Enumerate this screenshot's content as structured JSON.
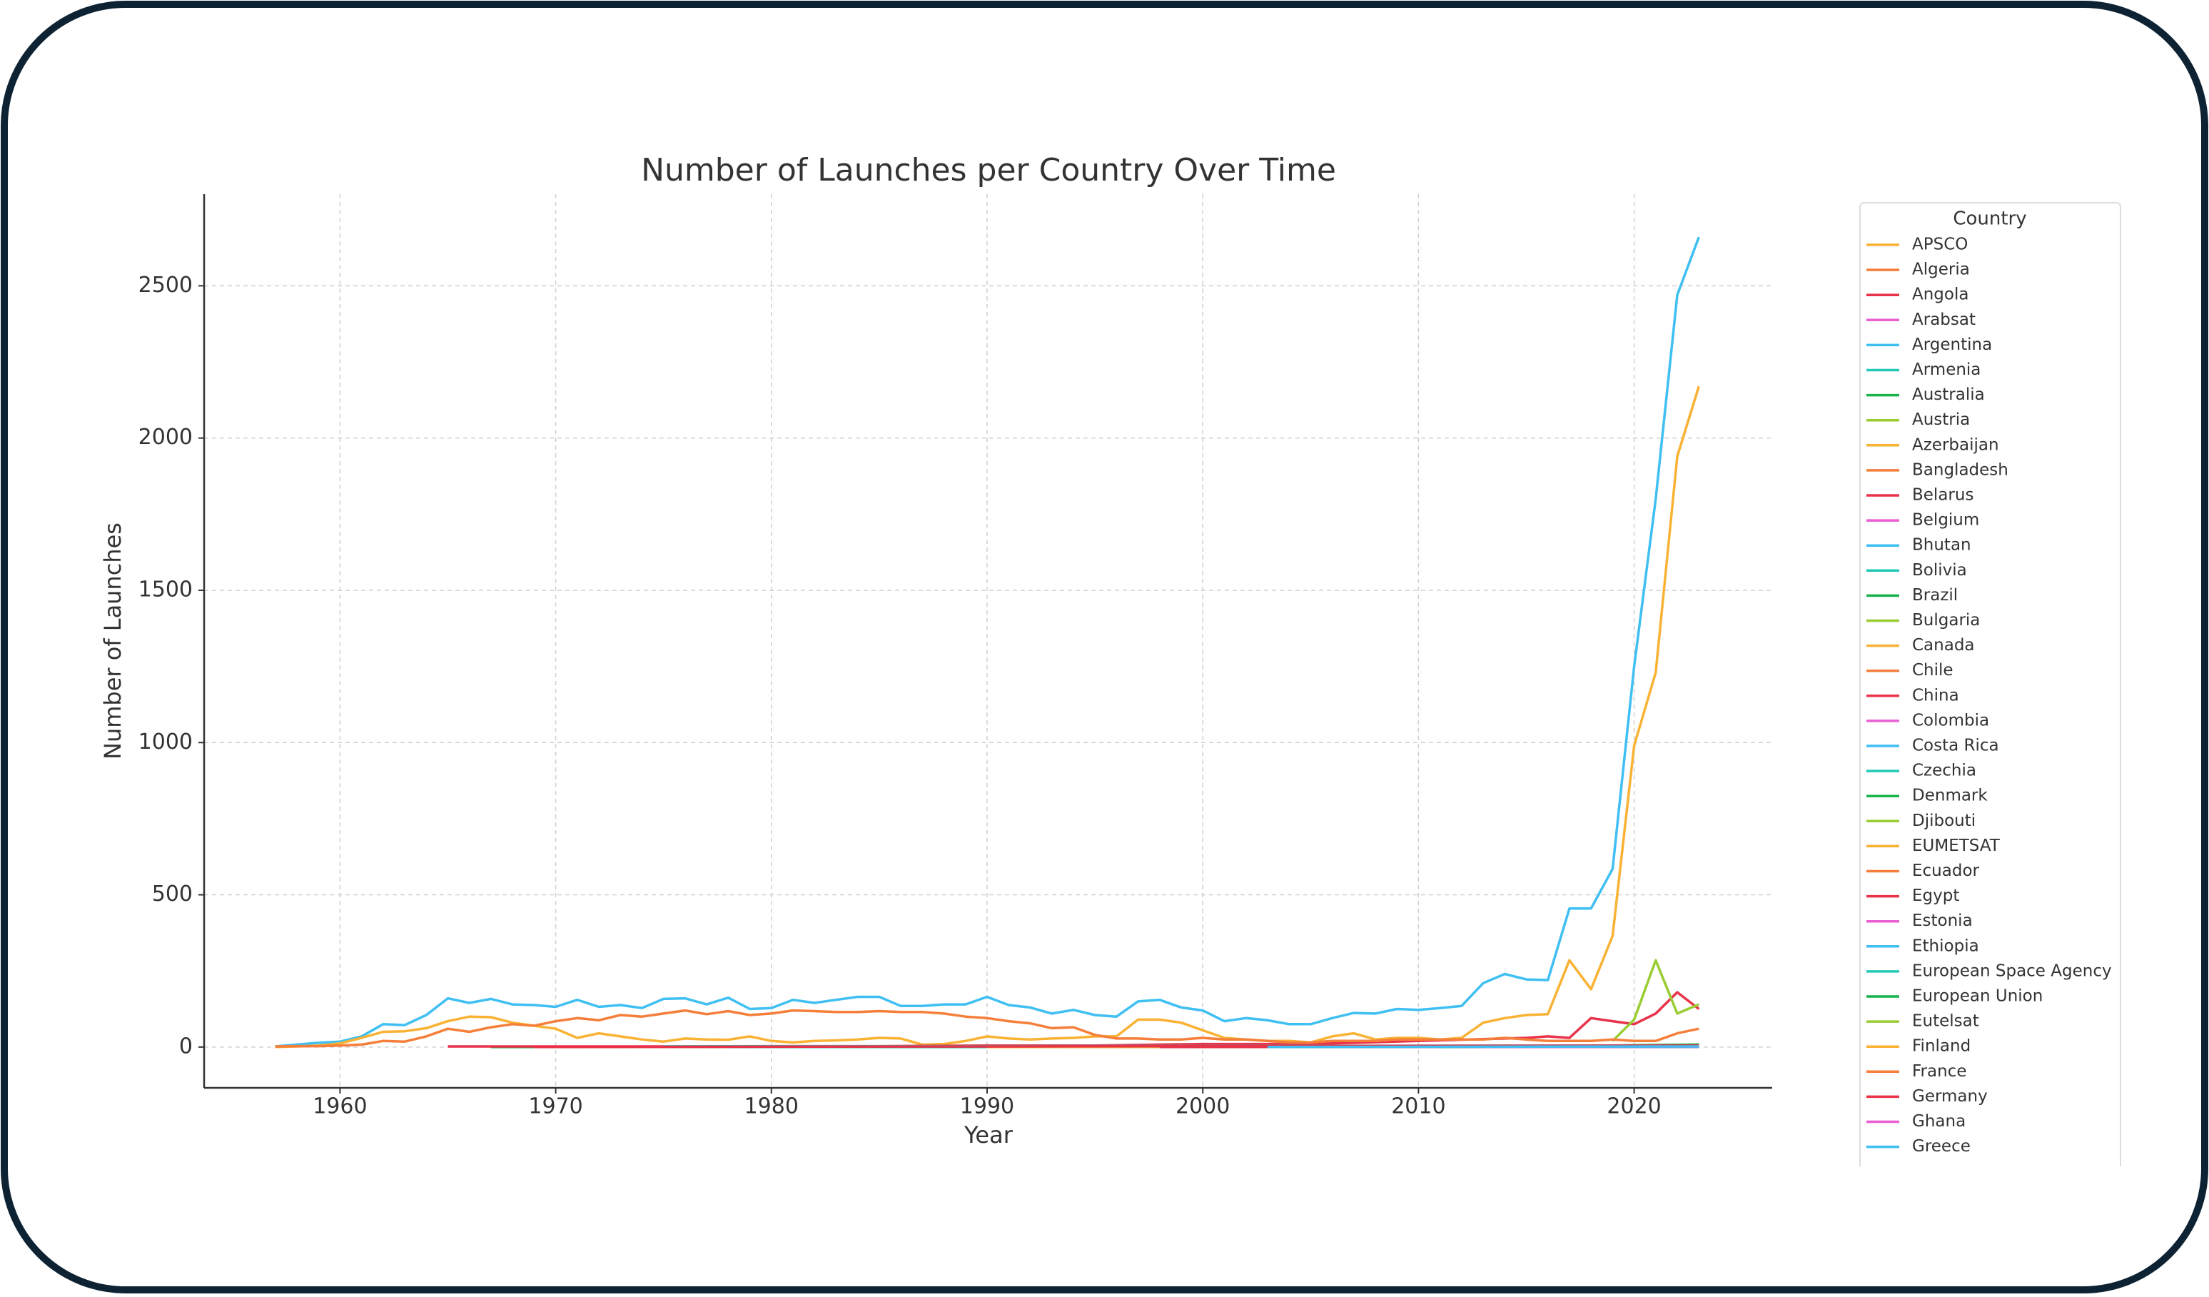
{
  "chart_data": {
    "type": "line",
    "title": "Number of Launches per Country Over Time",
    "x_label": "Year",
    "y_label": "Number of Launches",
    "legend_title": "Country",
    "legend": "right-outside",
    "grid": true,
    "xlim": [
      1953.7,
      2026.4
    ],
    "xticks": [
      1960,
      1970,
      1980,
      1990,
      2000,
      2010,
      2020
    ],
    "ylim": [
      -134,
      2801
    ],
    "yticks": [
      0,
      500,
      1000,
      1500,
      2000,
      2500
    ],
    "series": [
      {
        "name": "APSCO",
        "color": "#f9b234",
        "x": [
          2008,
          2023
        ],
        "values": [
          0,
          1
        ]
      },
      {
        "name": "Algeria",
        "color": "#f57f3a",
        "x": [
          2002,
          2023
        ],
        "values": [
          0,
          1
        ]
      },
      {
        "name": "Angola",
        "color": "#e8334a",
        "x": [
          2017,
          2023
        ],
        "values": [
          0,
          1
        ]
      },
      {
        "name": "Arabsat",
        "color": "#ea5fd2",
        "x": [
          1985,
          2023
        ],
        "values": [
          0,
          2
        ]
      },
      {
        "name": "Argentina",
        "color": "#3fbff2",
        "x": [
          1957,
          1958,
          1959,
          1960,
          1961,
          1962,
          1963,
          1964,
          1965,
          1966,
          1967,
          1968,
          1969,
          1970,
          1971,
          1972,
          1973,
          1974,
          1975,
          1976,
          1977,
          1978,
          1979,
          1980,
          1981,
          1982,
          1983,
          1984,
          1985,
          1986,
          1987,
          1988,
          1989,
          1990,
          1991,
          1992,
          1993,
          1994,
          1995,
          1996,
          1997,
          1998,
          1999,
          2000,
          2001,
          2002,
          2003,
          2004,
          2005,
          2006,
          2007,
          2008,
          2009,
          2010,
          2011,
          2012,
          2013,
          2014,
          2015,
          2016,
          2017,
          2018,
          2019,
          2020,
          2021,
          2022,
          2023
        ],
        "values": [
          2,
          8,
          14,
          18,
          35,
          75,
          72,
          105,
          160,
          145,
          158,
          140,
          138,
          132,
          155,
          132,
          138,
          128,
          158,
          160,
          140,
          162,
          125,
          128,
          155,
          145,
          155,
          165,
          165,
          135,
          135,
          140,
          140,
          165,
          138,
          130,
          110,
          122,
          105,
          100,
          150,
          155,
          130,
          120,
          85,
          95,
          88,
          75,
          75,
          95,
          112,
          110,
          125,
          122,
          128,
          135,
          210,
          240,
          222,
          220,
          455,
          455,
          585,
          1250,
          1800,
          2470,
          2660
        ]
      },
      {
        "name": "Armenia",
        "color": "#23c9b6",
        "x": [
          2010,
          2023
        ],
        "values": [
          0,
          1
        ]
      },
      {
        "name": "Australia",
        "color": "#18b24b",
        "x": [
          1967,
          2023
        ],
        "values": [
          0,
          3
        ]
      },
      {
        "name": "Austria",
        "color": "#9acd32",
        "x": [
          1969,
          2023
        ],
        "values": [
          0,
          2
        ]
      },
      {
        "name": "Azerbaijan",
        "color": "#f9b234",
        "x": [
          2013,
          2023
        ],
        "values": [
          0,
          1
        ]
      },
      {
        "name": "Bangladesh",
        "color": "#f57f3a",
        "x": [
          2018,
          2023
        ],
        "values": [
          0,
          1
        ]
      },
      {
        "name": "Belarus",
        "color": "#e8334a",
        "x": [
          2012,
          2023
        ],
        "values": [
          0,
          1
        ]
      },
      {
        "name": "Belgium",
        "color": "#ea5fd2",
        "x": [
          2001,
          2023
        ],
        "values": [
          0,
          2
        ]
      },
      {
        "name": "Bhutan",
        "color": "#3fbff2",
        "x": [
          2018,
          2023
        ],
        "values": [
          0,
          1
        ]
      },
      {
        "name": "Bolivia",
        "color": "#23c9b6",
        "x": [
          2013,
          2023
        ],
        "values": [
          0,
          1
        ]
      },
      {
        "name": "Brazil",
        "color": "#18b24b",
        "x": [
          1985,
          2023
        ],
        "values": [
          0,
          4
        ]
      },
      {
        "name": "Bulgaria",
        "color": "#9acd32",
        "x": [
          2014,
          2023
        ],
        "values": [
          0,
          1
        ]
      },
      {
        "name": "Canada",
        "color": "#f9b234",
        "x": [
          1957,
          1958,
          1959,
          1960,
          1961,
          1962,
          1963,
          1964,
          1965,
          1966,
          1967,
          1968,
          1969,
          1970,
          1971,
          1972,
          1973,
          1974,
          1975,
          1976,
          1977,
          1978,
          1979,
          1980,
          1981,
          1982,
          1983,
          1984,
          1985,
          1986,
          1987,
          1988,
          1989,
          1990,
          1991,
          1992,
          1993,
          1994,
          1995,
          1996,
          1997,
          1998,
          1999,
          2000,
          2001,
          2002,
          2003,
          2004,
          2005,
          2006,
          2007,
          2008,
          2009,
          2010,
          2011,
          2012,
          2013,
          2014,
          2015,
          2016,
          2017,
          2018,
          2019,
          2020,
          2021,
          2022,
          2023
        ],
        "values": [
          0,
          2,
          5,
          12,
          30,
          50,
          52,
          62,
          85,
          100,
          98,
          80,
          70,
          60,
          30,
          45,
          35,
          25,
          18,
          28,
          25,
          24,
          35,
          20,
          15,
          20,
          22,
          25,
          30,
          28,
          8,
          10,
          20,
          35,
          28,
          25,
          28,
          30,
          35,
          35,
          90,
          90,
          80,
          55,
          30,
          25,
          20,
          20,
          15,
          35,
          45,
          25,
          30,
          30,
          25,
          30,
          80,
          95,
          105,
          108,
          285,
          190,
          365,
          990,
          1230,
          1940,
          2170
        ]
      },
      {
        "name": "Chile",
        "color": "#f57f3a",
        "x": [
          1998,
          2023
        ],
        "values": [
          0,
          1
        ]
      },
      {
        "name": "China",
        "color": "#e8334a",
        "x": [
          1965,
          1970,
          1975,
          1980,
          1985,
          1990,
          1995,
          2000,
          2005,
          2010,
          2015,
          2016,
          2017,
          2018,
          2019,
          2020,
          2021,
          2022,
          2023
        ],
        "values": [
          2,
          2,
          2,
          3,
          3,
          5,
          5,
          10,
          10,
          20,
          30,
          35,
          30,
          95,
          85,
          75,
          110,
          180,
          125
        ]
      },
      {
        "name": "Colombia",
        "color": "#ea5fd2",
        "x": [
          2007,
          2023
        ],
        "values": [
          0,
          1
        ]
      },
      {
        "name": "Costa Rica",
        "color": "#3fbff2",
        "x": [
          2018,
          2023
        ],
        "values": [
          0,
          1
        ]
      },
      {
        "name": "Czechia",
        "color": "#23c9b6",
        "x": [
          1978,
          2023
        ],
        "values": [
          0,
          2
        ]
      },
      {
        "name": "Denmark",
        "color": "#18b24b",
        "x": [
          1999,
          2023
        ],
        "values": [
          0,
          3
        ]
      },
      {
        "name": "Djibouti",
        "color": "#9acd32",
        "x": [
          2020,
          2023
        ],
        "values": [
          0,
          1
        ]
      },
      {
        "name": "EUMETSAT",
        "color": "#f9b234",
        "x": [
          1990,
          2023
        ],
        "values": [
          0,
          2
        ]
      },
      {
        "name": "Ecuador",
        "color": "#f57f3a",
        "x": [
          2013,
          2023
        ],
        "values": [
          0,
          1
        ]
      },
      {
        "name": "Egypt",
        "color": "#e8334a",
        "x": [
          1998,
          2023
        ],
        "values": [
          0,
          2
        ]
      },
      {
        "name": "Estonia",
        "color": "#ea5fd2",
        "x": [
          2013,
          2023
        ],
        "values": [
          0,
          1
        ]
      },
      {
        "name": "Ethiopia",
        "color": "#3fbff2",
        "x": [
          2019,
          2023
        ],
        "values": [
          0,
          1
        ]
      },
      {
        "name": "European Space Agency",
        "color": "#23c9b6",
        "x": [
          1975,
          2023
        ],
        "values": [
          2,
          5
        ]
      },
      {
        "name": "European Union",
        "color": "#18b24b",
        "x": [
          2011,
          2019,
          2023
        ],
        "values": [
          0,
          5,
          8
        ]
      },
      {
        "name": "Eutelsat",
        "color": "#9acd32",
        "x": [
          2019,
          2020,
          2021,
          2022,
          2023
        ],
        "values": [
          20,
          90,
          285,
          110,
          140
        ]
      },
      {
        "name": "Finland",
        "color": "#f9b234",
        "x": [
          2017,
          2023
        ],
        "values": [
          0,
          3
        ]
      },
      {
        "name": "France",
        "color": "#f57f3a",
        "x": [
          1957,
          1958,
          1959,
          1960,
          1961,
          1962,
          1963,
          1964,
          1965,
          1966,
          1967,
          1968,
          1969,
          1970,
          1971,
          1972,
          1973,
          1974,
          1975,
          1976,
          1977,
          1978,
          1979,
          1980,
          1981,
          1982,
          1983,
          1984,
          1985,
          1986,
          1987,
          1988,
          1989,
          1990,
          1991,
          1992,
          1993,
          1994,
          1995,
          1996,
          1997,
          1998,
          1999,
          2000,
          2001,
          2002,
          2003,
          2004,
          2005,
          2006,
          2007,
          2008,
          2009,
          2010,
          2011,
          2012,
          2013,
          2014,
          2015,
          2016,
          2017,
          2018,
          2019,
          2020,
          2021,
          2022,
          2023
        ],
        "values": [
          2,
          3,
          3,
          5,
          8,
          20,
          18,
          35,
          60,
          50,
          65,
          75,
          70,
          85,
          95,
          88,
          105,
          100,
          110,
          120,
          108,
          118,
          105,
          110,
          120,
          118,
          115,
          115,
          118,
          115,
          115,
          110,
          100,
          95,
          85,
          78,
          62,
          65,
          40,
          28,
          28,
          25,
          25,
          30,
          25,
          25,
          20,
          15,
          15,
          20,
          20,
          20,
          25,
          25,
          25,
          25,
          25,
          30,
          25,
          20,
          20,
          20,
          25,
          20,
          20,
          45,
          60
        ]
      },
      {
        "name": "Germany",
        "color": "#e8334a",
        "x": [
          1969,
          2023
        ],
        "values": [
          0,
          5
        ]
      },
      {
        "name": "Ghana",
        "color": "#ea5fd2",
        "x": [
          2017,
          2023
        ],
        "values": [
          0,
          1
        ]
      },
      {
        "name": "Greece",
        "color": "#3fbff2",
        "x": [
          2003,
          2023
        ],
        "values": [
          0,
          2
        ]
      }
    ]
  }
}
